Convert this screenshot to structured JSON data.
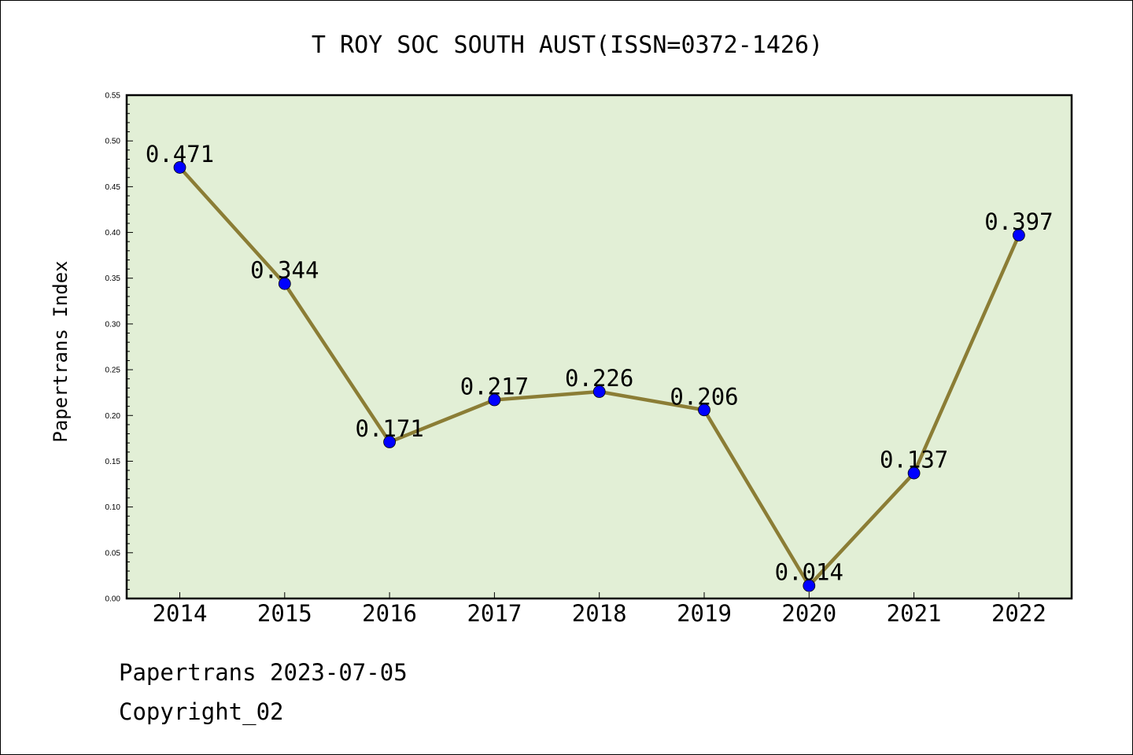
{
  "chart_data": {
    "type": "line",
    "title": "T ROY SOC SOUTH AUST(ISSN=0372-1426)",
    "xlabel": "",
    "ylabel": "Papertrans Index",
    "categories": [
      "2014",
      "2015",
      "2016",
      "2017",
      "2018",
      "2019",
      "2020",
      "2021",
      "2022"
    ],
    "series": [
      {
        "values": [
          0.471,
          0.344,
          0.171,
          0.217,
          0.226,
          0.206,
          0.014,
          0.137,
          0.397
        ]
      }
    ],
    "data_labels": [
      "0.471",
      "0.344",
      "0.171",
      "0.217",
      "0.226",
      "0.206",
      "0.014",
      "0.137",
      "0.397"
    ],
    "ylim": [
      0,
      0.55
    ],
    "yticks": [
      "0.00",
      "0.05",
      "0.10",
      "0.15",
      "0.20",
      "0.25",
      "0.30",
      "0.35",
      "0.40",
      "0.45",
      "0.50",
      "0.55"
    ],
    "grid": false,
    "colors": {
      "plot_background": "#e2efd6",
      "line": "#8b7d35",
      "marker": "#0000ff"
    }
  },
  "footer": {
    "line1": "Papertrans 2023-07-05",
    "line2": "Copyright_02"
  }
}
